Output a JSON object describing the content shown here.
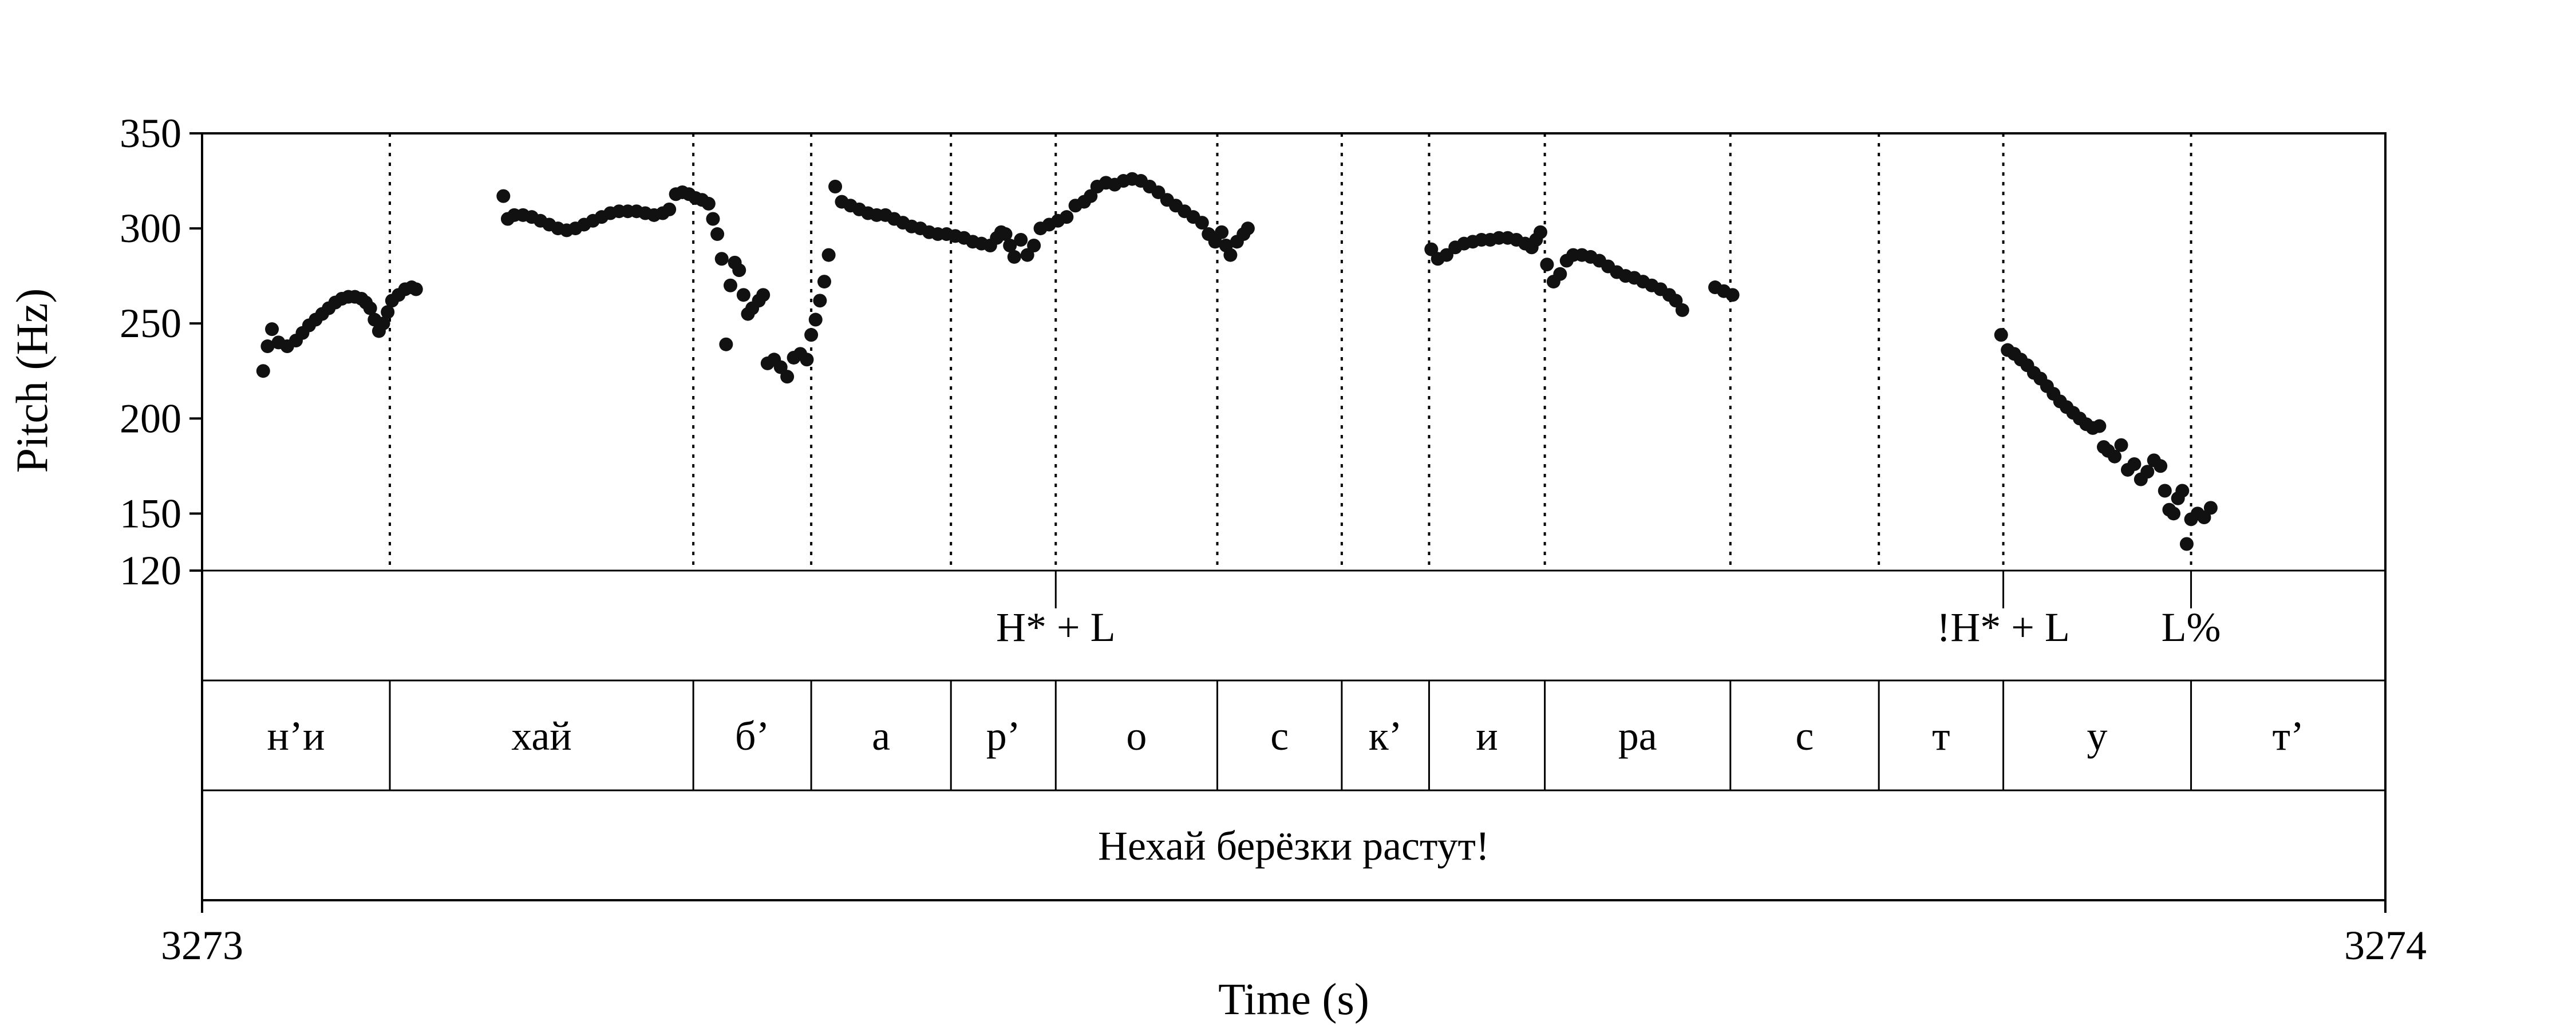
{
  "chart_data": {
    "type": "scatter",
    "xlabel": "Time (s)",
    "ylabel": "Pitch (Hz)",
    "xlim": [
      3273,
      3274
    ],
    "ylim": [
      120,
      350
    ],
    "x_ticks": [
      "3273",
      "3274"
    ],
    "y_ticks": [
      350,
      300,
      250,
      200,
      150,
      120
    ],
    "y_tick_labels": [
      "350",
      "300",
      "250",
      "200",
      "150",
      "120"
    ],
    "grid": false,
    "legend": "none",
    "series": [
      {
        "marker": "filled-circle",
        "color": "#111111",
        "points": [
          [
            3273.028,
            225
          ],
          [
            3273.03,
            238
          ],
          [
            3273.032,
            247
          ],
          [
            3273.035,
            240
          ],
          [
            3273.039,
            238
          ],
          [
            3273.043,
            241
          ],
          [
            3273.046,
            245
          ],
          [
            3273.049,
            249
          ],
          [
            3273.052,
            252
          ],
          [
            3273.055,
            255
          ],
          [
            3273.058,
            258
          ],
          [
            3273.061,
            261
          ],
          [
            3273.064,
            263
          ],
          [
            3273.067,
            264
          ],
          [
            3273.07,
            264
          ],
          [
            3273.073,
            263
          ],
          [
            3273.075,
            261
          ],
          [
            3273.077,
            258
          ],
          [
            3273.079,
            252
          ],
          [
            3273.081,
            246
          ],
          [
            3273.083,
            250
          ],
          [
            3273.085,
            256
          ],
          [
            3273.087,
            262
          ],
          [
            3273.09,
            265
          ],
          [
            3273.093,
            268
          ],
          [
            3273.096,
            269
          ],
          [
            3273.098,
            268
          ],
          [
            3273.138,
            317
          ],
          [
            3273.14,
            305
          ],
          [
            3273.143,
            307
          ],
          [
            3273.147,
            307
          ],
          [
            3273.151,
            306
          ],
          [
            3273.155,
            304
          ],
          [
            3273.159,
            302
          ],
          [
            3273.163,
            300
          ],
          [
            3273.167,
            299
          ],
          [
            3273.171,
            300
          ],
          [
            3273.175,
            302
          ],
          [
            3273.179,
            304
          ],
          [
            3273.183,
            306
          ],
          [
            3273.187,
            308
          ],
          [
            3273.191,
            309
          ],
          [
            3273.195,
            309
          ],
          [
            3273.199,
            309
          ],
          [
            3273.203,
            308
          ],
          [
            3273.207,
            307
          ],
          [
            3273.211,
            308
          ],
          [
            3273.214,
            310
          ],
          [
            3273.217,
            318
          ],
          [
            3273.22,
            319
          ],
          [
            3273.223,
            318
          ],
          [
            3273.226,
            316
          ],
          [
            3273.229,
            315
          ],
          [
            3273.232,
            313
          ],
          [
            3273.234,
            305
          ],
          [
            3273.236,
            297
          ],
          [
            3273.238,
            284
          ],
          [
            3273.24,
            239
          ],
          [
            3273.242,
            270
          ],
          [
            3273.244,
            282
          ],
          [
            3273.246,
            278
          ],
          [
            3273.248,
            265
          ],
          [
            3273.25,
            255
          ],
          [
            3273.252,
            258
          ],
          [
            3273.255,
            262
          ],
          [
            3273.257,
            265
          ],
          [
            3273.259,
            229
          ],
          [
            3273.262,
            231
          ],
          [
            3273.265,
            227
          ],
          [
            3273.268,
            222
          ],
          [
            3273.271,
            232
          ],
          [
            3273.274,
            234
          ],
          [
            3273.277,
            231
          ],
          [
            3273.279,
            244
          ],
          [
            3273.281,
            252
          ],
          [
            3273.283,
            262
          ],
          [
            3273.285,
            272
          ],
          [
            3273.287,
            286
          ],
          [
            3273.29,
            322
          ],
          [
            3273.293,
            314
          ],
          [
            3273.297,
            312
          ],
          [
            3273.301,
            310
          ],
          [
            3273.305,
            308
          ],
          [
            3273.309,
            307
          ],
          [
            3273.313,
            307
          ],
          [
            3273.317,
            305
          ],
          [
            3273.321,
            303
          ],
          [
            3273.325,
            301
          ],
          [
            3273.329,
            300
          ],
          [
            3273.333,
            298
          ],
          [
            3273.337,
            297
          ],
          [
            3273.341,
            297
          ],
          [
            3273.345,
            296
          ],
          [
            3273.349,
            295
          ],
          [
            3273.353,
            293
          ],
          [
            3273.357,
            292
          ],
          [
            3273.361,
            291
          ],
          [
            3273.364,
            295
          ],
          [
            3273.366,
            298
          ],
          [
            3273.368,
            297
          ],
          [
            3273.37,
            291
          ],
          [
            3273.372,
            285
          ],
          [
            3273.375,
            294
          ],
          [
            3273.378,
            286
          ],
          [
            3273.381,
            291
          ],
          [
            3273.384,
            300
          ],
          [
            3273.388,
            302
          ],
          [
            3273.392,
            304
          ],
          [
            3273.396,
            306
          ],
          [
            3273.4,
            312
          ],
          [
            3273.404,
            314
          ],
          [
            3273.407,
            317
          ],
          [
            3273.41,
            322
          ],
          [
            3273.414,
            324
          ],
          [
            3273.418,
            323
          ],
          [
            3273.422,
            325
          ],
          [
            3273.426,
            326
          ],
          [
            3273.43,
            325
          ],
          [
            3273.434,
            322
          ],
          [
            3273.438,
            319
          ],
          [
            3273.442,
            315
          ],
          [
            3273.446,
            312
          ],
          [
            3273.45,
            309
          ],
          [
            3273.454,
            306
          ],
          [
            3273.458,
            303
          ],
          [
            3273.461,
            297
          ],
          [
            3273.464,
            293
          ],
          [
            3273.467,
            298
          ],
          [
            3273.469,
            291
          ],
          [
            3273.471,
            286
          ],
          [
            3273.474,
            293
          ],
          [
            3273.477,
            297
          ],
          [
            3273.479,
            300
          ],
          [
            3273.563,
            289
          ],
          [
            3273.566,
            284
          ],
          [
            3273.57,
            286
          ],
          [
            3273.574,
            290
          ],
          [
            3273.578,
            292
          ],
          [
            3273.582,
            293
          ],
          [
            3273.586,
            294
          ],
          [
            3273.59,
            294
          ],
          [
            3273.594,
            295
          ],
          [
            3273.598,
            295
          ],
          [
            3273.602,
            294
          ],
          [
            3273.606,
            292
          ],
          [
            3273.609,
            290
          ],
          [
            3273.611,
            294
          ],
          [
            3273.613,
            298
          ],
          [
            3273.616,
            281
          ],
          [
            3273.619,
            272
          ],
          [
            3273.622,
            276
          ],
          [
            3273.625,
            283
          ],
          [
            3273.628,
            286
          ],
          [
            3273.632,
            286
          ],
          [
            3273.636,
            285
          ],
          [
            3273.64,
            283
          ],
          [
            3273.644,
            280
          ],
          [
            3273.648,
            277
          ],
          [
            3273.652,
            275
          ],
          [
            3273.656,
            274
          ],
          [
            3273.66,
            272
          ],
          [
            3273.664,
            270
          ],
          [
            3273.668,
            268
          ],
          [
            3273.672,
            265
          ],
          [
            3273.675,
            262
          ],
          [
            3273.678,
            257
          ],
          [
            3273.693,
            269
          ],
          [
            3273.697,
            267
          ],
          [
            3273.701,
            265
          ],
          [
            3273.824,
            244
          ],
          [
            3273.827,
            236
          ],
          [
            3273.83,
            234
          ],
          [
            3273.833,
            231
          ],
          [
            3273.836,
            228
          ],
          [
            3273.839,
            224
          ],
          [
            3273.842,
            221
          ],
          [
            3273.845,
            217
          ],
          [
            3273.848,
            213
          ],
          [
            3273.851,
            209
          ],
          [
            3273.854,
            206
          ],
          [
            3273.857,
            203
          ],
          [
            3273.86,
            200
          ],
          [
            3273.863,
            197
          ],
          [
            3273.866,
            195
          ],
          [
            3273.869,
            196
          ],
          [
            3273.871,
            185
          ],
          [
            3273.873,
            183
          ],
          [
            3273.876,
            180
          ],
          [
            3273.879,
            186
          ],
          [
            3273.882,
            173
          ],
          [
            3273.885,
            176
          ],
          [
            3273.888,
            168
          ],
          [
            3273.891,
            172
          ],
          [
            3273.894,
            178
          ],
          [
            3273.897,
            175
          ],
          [
            3273.899,
            162
          ],
          [
            3273.901,
            152
          ],
          [
            3273.903,
            150
          ],
          [
            3273.905,
            158
          ],
          [
            3273.907,
            162
          ],
          [
            3273.909,
            134
          ],
          [
            3273.911,
            147
          ],
          [
            3273.914,
            150
          ],
          [
            3273.917,
            148
          ],
          [
            3273.92,
            153
          ]
        ]
      }
    ],
    "boundaries": [
      3273.086,
      3273.225,
      3273.279,
      3273.343,
      3273.391,
      3273.465,
      3273.522,
      3273.562,
      3273.615,
      3273.7,
      3273.768,
      3273.825,
      3273.911
    ],
    "tones": [
      {
        "label": "H* + L",
        "time": 3273.391
      },
      {
        "label": "!H* + L",
        "time": 3273.825
      },
      {
        "label": "L%",
        "time": 3273.911
      }
    ],
    "segments": [
      {
        "label": "н’и",
        "start": 3273.0,
        "end": 3273.086
      },
      {
        "label": "хай",
        "start": 3273.086,
        "end": 3273.225
      },
      {
        "label": "б’",
        "start": 3273.225,
        "end": 3273.279
      },
      {
        "label": "а",
        "start": 3273.279,
        "end": 3273.343
      },
      {
        "label": "р’",
        "start": 3273.343,
        "end": 3273.391
      },
      {
        "label": "о",
        "start": 3273.391,
        "end": 3273.465
      },
      {
        "label": "с",
        "start": 3273.465,
        "end": 3273.522
      },
      {
        "label": "к’",
        "start": 3273.522,
        "end": 3273.562
      },
      {
        "label": "и",
        "start": 3273.562,
        "end": 3273.615
      },
      {
        "label": "ра",
        "start": 3273.615,
        "end": 3273.7
      },
      {
        "label": "с",
        "start": 3273.7,
        "end": 3273.768
      },
      {
        "label": "т",
        "start": 3273.768,
        "end": 3273.825
      },
      {
        "label": "у",
        "start": 3273.825,
        "end": 3273.911
      },
      {
        "label": "т’",
        "start": 3273.911,
        "end": 3274.0
      }
    ],
    "sentence": "Нехай берёзки растут!"
  }
}
